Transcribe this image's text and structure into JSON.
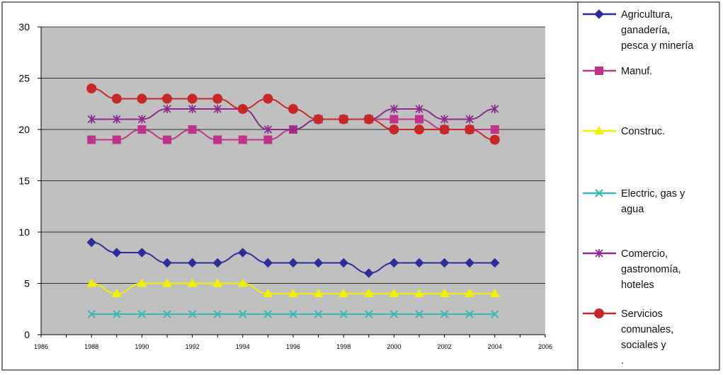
{
  "chart_data": {
    "type": "line",
    "title": "",
    "xlabel": "",
    "ylabel": "",
    "xlim": [
      1986,
      2006
    ],
    "ylim": [
      0,
      30
    ],
    "x_ticks": [
      "1986",
      "1988",
      "1990",
      "1992",
      "1994",
      "1996",
      "1998",
      "2000",
      "2002",
      "2004",
      "2006"
    ],
    "y_ticks": [
      "0",
      "5",
      "10",
      "15",
      "20",
      "25",
      "30"
    ],
    "grid": "horizontal",
    "legend_position": "right",
    "plot_background": "#c0c0c0",
    "x": [
      1988,
      1989,
      1990,
      1991,
      1992,
      1993,
      1994,
      1995,
      1996,
      1997,
      1998,
      1999,
      2000,
      2001,
      2002,
      2003,
      2004
    ],
    "series": [
      {
        "name": "Agricultura, ganadería, pesca y minería",
        "legend_lines": [
          "Agricultura,",
          "ganadería,",
          "pesca y minería"
        ],
        "color": "#2d2d9a",
        "marker": "diamond",
        "values": [
          9,
          8,
          8,
          7,
          7,
          7,
          8,
          7,
          7,
          7,
          7,
          6,
          7,
          7,
          7,
          7,
          7
        ]
      },
      {
        "name": "Manuf.",
        "legend_lines": [
          "Manuf."
        ],
        "color": "#c0338a",
        "marker": "square",
        "values": [
          19,
          19,
          20,
          19,
          20,
          19,
          19,
          19,
          20,
          21,
          21,
          21,
          21,
          21,
          20,
          20,
          20
        ]
      },
      {
        "name": "Construc.",
        "legend_lines": [
          "Construc."
        ],
        "color": "#f2f200",
        "marker": "triangle",
        "values": [
          5,
          4,
          5,
          5,
          5,
          5,
          5,
          4,
          4,
          4,
          4,
          4,
          4,
          4,
          4,
          4,
          4
        ]
      },
      {
        "name": "Electric, gas y agua",
        "legend_lines": [
          "Electric, gas y",
          "agua"
        ],
        "color": "#36b8b8",
        "marker": "x",
        "values": [
          2,
          2,
          2,
          2,
          2,
          2,
          2,
          2,
          2,
          2,
          2,
          2,
          2,
          2,
          2,
          2,
          2
        ]
      },
      {
        "name": "Comercio, gastronomía, hoteles",
        "legend_lines": [
          "Comercio,",
          "gastronomía,",
          "hoteles"
        ],
        "color": "#8a2a8e",
        "marker": "star",
        "values": [
          21,
          21,
          21,
          22,
          22,
          22,
          22,
          20,
          20,
          21,
          21,
          21,
          22,
          22,
          21,
          21,
          22
        ]
      },
      {
        "name": "Servicios comunales, sociales y .",
        "legend_lines": [
          "Servicios",
          "comunales,",
          "sociales y",
          "."
        ],
        "color": "#c62828",
        "marker": "circle",
        "values": [
          24,
          23,
          23,
          23,
          23,
          23,
          22,
          23,
          22,
          21,
          21,
          21,
          20,
          20,
          20,
          20,
          19
        ]
      }
    ]
  }
}
